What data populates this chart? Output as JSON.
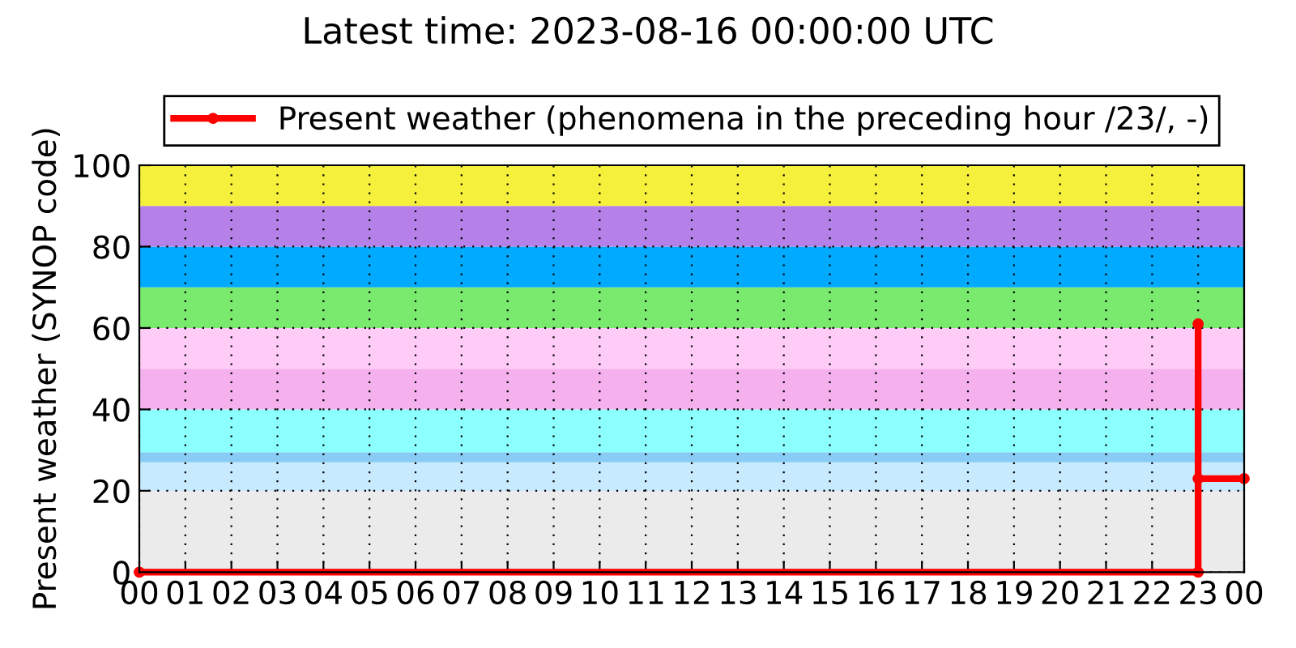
{
  "chart_data": {
    "type": "line",
    "title": "Latest time: 2023-08-16 00:00:00 UTC",
    "ylabel": "Present weather (SYNOP code)",
    "series": [
      {
        "name": "Present weather (phenomena in the preceding hour /23/, -)",
        "color": "#ff0000",
        "x": [
          0,
          23,
          23,
          23,
          24
        ],
        "values": [
          0,
          0,
          61,
          23,
          23
        ]
      }
    ],
    "xlim": [
      0,
      24
    ],
    "xticks": [
      {
        "value": 0,
        "label": "00"
      },
      {
        "value": 1,
        "label": "01"
      },
      {
        "value": 2,
        "label": "02"
      },
      {
        "value": 3,
        "label": "03"
      },
      {
        "value": 4,
        "label": "04"
      },
      {
        "value": 5,
        "label": "05"
      },
      {
        "value": 6,
        "label": "06"
      },
      {
        "value": 7,
        "label": "07"
      },
      {
        "value": 8,
        "label": "08"
      },
      {
        "value": 9,
        "label": "09"
      },
      {
        "value": 10,
        "label": "10"
      },
      {
        "value": 11,
        "label": "11"
      },
      {
        "value": 12,
        "label": "12"
      },
      {
        "value": 13,
        "label": "13"
      },
      {
        "value": 14,
        "label": "14"
      },
      {
        "value": 15,
        "label": "15"
      },
      {
        "value": 16,
        "label": "16"
      },
      {
        "value": 17,
        "label": "17"
      },
      {
        "value": 18,
        "label": "18"
      },
      {
        "value": 19,
        "label": "19"
      },
      {
        "value": 20,
        "label": "20"
      },
      {
        "value": 21,
        "label": "21"
      },
      {
        "value": 22,
        "label": "22"
      },
      {
        "value": 23,
        "label": "23"
      },
      {
        "value": 24,
        "label": "00"
      }
    ],
    "ylim": [
      0,
      100
    ],
    "yticks": [
      0,
      20,
      40,
      60,
      80,
      100
    ],
    "bands": [
      {
        "axis": "y",
        "from": 0,
        "to": 20,
        "color": "#ebebeb"
      },
      {
        "axis": "y",
        "from": 20,
        "to": 27,
        "color": "#c8eaff"
      },
      {
        "axis": "y",
        "from": 27,
        "to": 29.5,
        "color": "#88ccf5"
      },
      {
        "axis": "y",
        "from": 29.5,
        "to": 40,
        "color": "#8cffff"
      },
      {
        "axis": "y",
        "from": 40,
        "to": 50,
        "color": "#f5b0ee"
      },
      {
        "axis": "y",
        "from": 50,
        "to": 60,
        "color": "#ffccf7"
      },
      {
        "axis": "y",
        "from": 60,
        "to": 70,
        "color": "#7aea6e"
      },
      {
        "axis": "y",
        "from": 70,
        "to": 80,
        "color": "#00aaff"
      },
      {
        "axis": "y",
        "from": 80,
        "to": 90,
        "color": "#b580e8"
      },
      {
        "axis": "y",
        "from": 90,
        "to": 100,
        "color": "#f5f03c"
      }
    ],
    "grid": true,
    "legend": "top",
    "marker": "circle",
    "line_style": "solid"
  }
}
